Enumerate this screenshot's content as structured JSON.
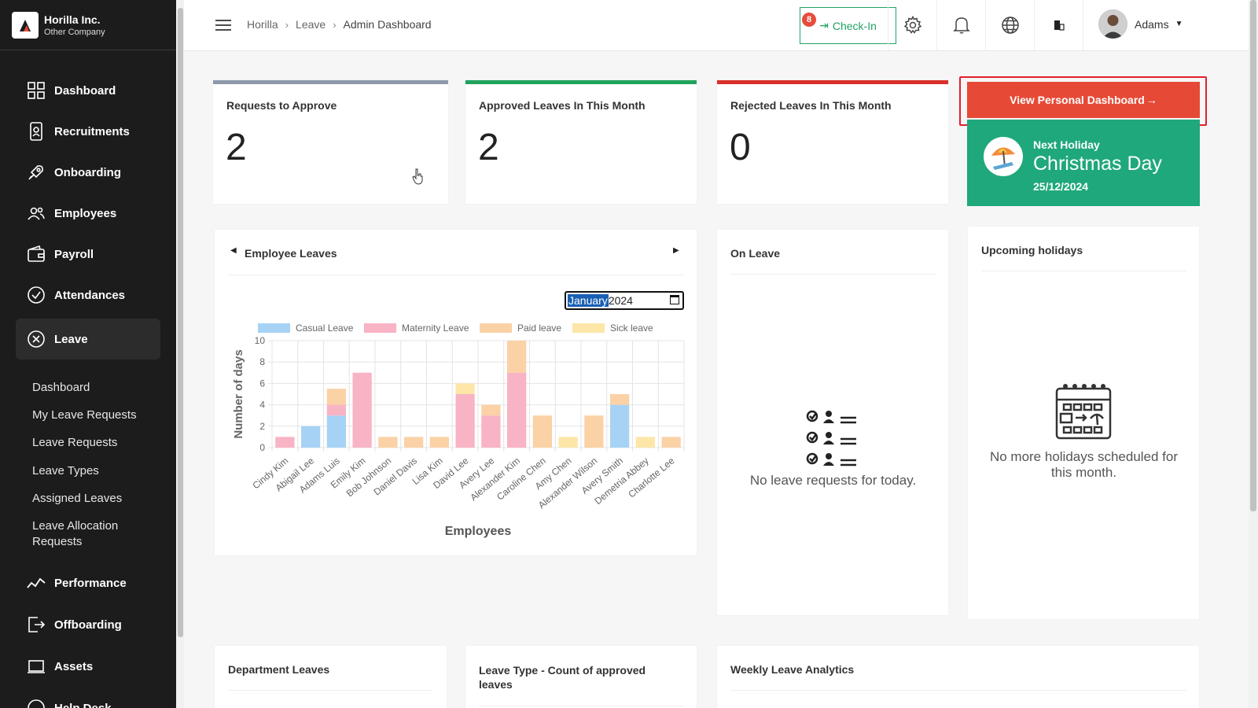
{
  "brand": {
    "name": "Horilla Inc.",
    "subtitle": "Other Company"
  },
  "sidebar": {
    "items": [
      {
        "label": "Dashboard",
        "icon": "dashboard-icon"
      },
      {
        "label": "Recruitments",
        "icon": "recruitment-icon"
      },
      {
        "label": "Onboarding",
        "icon": "rocket-icon"
      },
      {
        "label": "Employees",
        "icon": "people-icon"
      },
      {
        "label": "Payroll",
        "icon": "wallet-icon"
      },
      {
        "label": "Attendances",
        "icon": "check-circle-icon"
      },
      {
        "label": "Leave",
        "icon": "leave-icon"
      },
      {
        "label": "Performance",
        "icon": "trend-icon"
      },
      {
        "label": "Offboarding",
        "icon": "exit-icon"
      },
      {
        "label": "Assets",
        "icon": "laptop-icon"
      },
      {
        "label": "Help Desk",
        "icon": "help-icon"
      }
    ],
    "leave_sub": [
      "Dashboard",
      "My Leave Requests",
      "Leave Requests",
      "Leave Types",
      "Assigned Leaves",
      "Leave Allocation Requests"
    ]
  },
  "header": {
    "breadcrumb": [
      "Horilla",
      "Leave",
      "Admin Dashboard"
    ],
    "checkin_label": "Check-In",
    "notification_count": "8",
    "user_name": "Adams"
  },
  "stats": [
    {
      "title": "Requests to Approve",
      "value": "2",
      "color": "#8c9aab"
    },
    {
      "title": "Approved Leaves In This Month",
      "value": "2",
      "color": "#1fa35c"
    },
    {
      "title": "Rejected Leaves In This Month",
      "value": "0",
      "color": "#d9302a"
    }
  ],
  "personal_dashboard_label": "View Personal Dashboard",
  "holiday": {
    "label": "Next Holiday",
    "name": "Christmas Day",
    "date": "25/12/2024"
  },
  "employee_leaves": {
    "title": "Employee Leaves",
    "month_value": "January",
    "year_value": " 2024"
  },
  "on_leave": {
    "title": "On Leave",
    "empty": "No leave requests for today."
  },
  "upcoming": {
    "title": "Upcoming holidays",
    "empty": "No more holidays scheduled for this month."
  },
  "bottom_panels": {
    "department": "Department Leaves",
    "leave_type": "Leave Type - Count of approved leaves",
    "weekly": "Weekly Leave Analytics"
  },
  "chart_data": {
    "type": "bar",
    "stacked": true,
    "xlabel": "Employees",
    "ylabel": "Number of days",
    "ylim": [
      0,
      10
    ],
    "yticks": [
      0,
      2,
      4,
      6,
      8,
      10
    ],
    "legend_position": "top",
    "categories": [
      "Cindy Kim",
      "Abigail Lee",
      "Adams Luis",
      "Emily Kim",
      "Bob Johnson",
      "Daniel Davis",
      "Lisa Kim",
      "David Lee",
      "Avery Lee",
      "Alexander Kim",
      "Caroline Chen",
      "Amy Chen",
      "Alexander Wilson",
      "Avery Smith",
      "Demetria Abbey",
      "Charlotte Lee"
    ],
    "series": [
      {
        "name": "Casual Leave",
        "color": "#a6d3f5",
        "values": [
          0,
          2,
          3,
          0,
          0,
          0,
          0,
          0,
          0,
          0,
          0,
          0,
          0,
          4,
          0,
          0
        ]
      },
      {
        "name": "Maternity Leave",
        "color": "#f8b3c4",
        "values": [
          1,
          0,
          1,
          7,
          0,
          0,
          0,
          5,
          3,
          7,
          0,
          0,
          0,
          0,
          0,
          0
        ]
      },
      {
        "name": "Paid leave",
        "color": "#fbd1a6",
        "values": [
          0,
          0,
          1.5,
          0,
          1,
          1,
          1,
          0,
          1,
          3,
          3,
          0,
          3,
          1,
          0,
          1
        ]
      },
      {
        "name": "Sick leave",
        "color": "#fde6a8",
        "values": [
          0,
          0,
          0,
          0,
          0,
          0,
          0,
          1,
          0,
          0,
          0,
          1,
          0,
          0,
          1,
          0
        ]
      }
    ]
  }
}
